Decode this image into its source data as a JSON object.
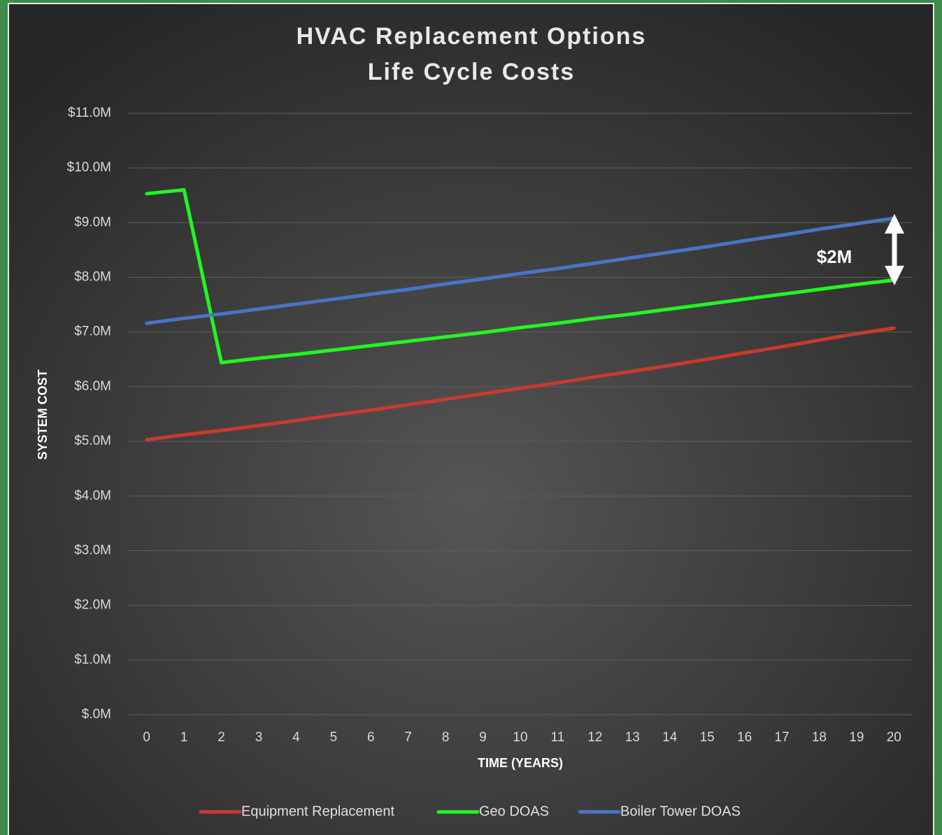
{
  "chart_data": {
    "type": "line",
    "title": "HVAC Replacement Options",
    "subtitle": "Life Cycle Costs",
    "x_label": "TIME (YEARS)",
    "y_label": "SYSTEM COST",
    "x": [
      0,
      1,
      2,
      3,
      4,
      5,
      6,
      7,
      8,
      9,
      10,
      11,
      12,
      13,
      14,
      15,
      16,
      17,
      18,
      19,
      20
    ],
    "xlim": [
      -0.5,
      20.5
    ],
    "xticks": [
      0,
      1,
      2,
      3,
      4,
      5,
      6,
      7,
      8,
      9,
      10,
      11,
      12,
      13,
      14,
      15,
      16,
      17,
      18,
      19,
      20
    ],
    "ylim": [
      0,
      11
    ],
    "yticks": [
      {
        "value": 0,
        "label": "$.0M"
      },
      {
        "value": 1,
        "label": "$1.0M"
      },
      {
        "value": 2,
        "label": "$2.0M"
      },
      {
        "value": 3,
        "label": "$3.0M"
      },
      {
        "value": 4,
        "label": "$4.0M"
      },
      {
        "value": 5,
        "label": "$5.0M"
      },
      {
        "value": 6,
        "label": "$6.0M"
      },
      {
        "value": 7,
        "label": "$7.0M"
      },
      {
        "value": 8,
        "label": "$8.0M"
      },
      {
        "value": 9,
        "label": "$9.0M"
      },
      {
        "value": 10,
        "label": "$10.0M"
      },
      {
        "value": 11,
        "label": "$11.0M"
      }
    ],
    "grid": true,
    "legend": "bottom",
    "annotation": "$2M",
    "series": [
      {
        "name": "Equipment Replacement",
        "color": "#c8392f",
        "values": [
          5.03,
          5.12,
          5.2,
          5.29,
          5.38,
          5.48,
          5.57,
          5.67,
          5.77,
          5.87,
          5.97,
          6.07,
          6.18,
          6.28,
          6.39,
          6.5,
          6.62,
          6.73,
          6.85,
          6.97,
          7.07
        ]
      },
      {
        "name": "Geo DOAS",
        "color": "#22f522",
        "values": [
          9.53,
          9.6,
          6.44,
          6.52,
          6.59,
          6.67,
          6.75,
          6.83,
          6.91,
          6.99,
          7.08,
          7.16,
          7.25,
          7.33,
          7.42,
          7.51,
          7.6,
          7.69,
          7.78,
          7.87,
          7.95
        ]
      },
      {
        "name": "Boiler Tower DOAS",
        "color": "#4a74c4",
        "values": [
          7.16,
          7.25,
          7.33,
          7.42,
          7.51,
          7.6,
          7.69,
          7.78,
          7.88,
          7.97,
          8.07,
          8.16,
          8.26,
          8.36,
          8.46,
          8.56,
          8.67,
          8.77,
          8.88,
          8.98,
          9.08
        ]
      }
    ]
  }
}
